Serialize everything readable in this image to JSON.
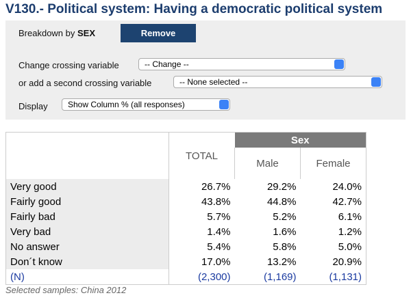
{
  "header": {
    "title": "V130.- Political system: Having a democratic political system"
  },
  "controls": {
    "breakdown_label": "Breakdown by",
    "breakdown_variable": "SEX",
    "remove_button": "Remove",
    "crossing_label": "Change crossing variable",
    "crossing_select": "-- Change --",
    "second_crossing_label": "or add a second crossing variable",
    "second_crossing_select": "-- None selected --",
    "display_label": "Display",
    "display_select": "Show Column % (all responses)"
  },
  "table": {
    "group_header": "Sex",
    "columns": [
      "TOTAL",
      "Male",
      "Female"
    ],
    "rows": [
      [
        "Very good",
        "26.7%",
        "29.2%",
        "24.0%"
      ],
      [
        "Fairly good",
        "43.8%",
        "44.8%",
        "42.7%"
      ],
      [
        "Fairly bad",
        "5.7%",
        "5.2%",
        "6.1%"
      ],
      [
        "Very bad",
        "1.4%",
        "1.6%",
        "1.2%"
      ],
      [
        "No answer",
        "5.4%",
        "5.8%",
        "5.0%"
      ],
      [
        "Don´t know",
        "17.0%",
        "13.2%",
        "20.9%"
      ],
      [
        "(N)",
        "(2,300)",
        "(1,169)",
        "(1,131)"
      ]
    ]
  },
  "footer": {
    "note": "Selected samples: China 2012"
  }
}
